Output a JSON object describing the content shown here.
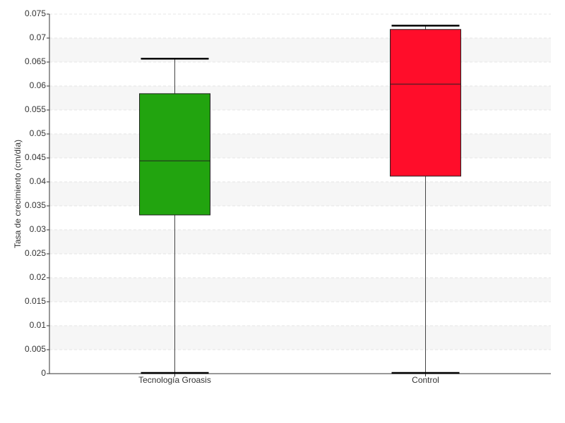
{
  "chart_data": {
    "type": "box",
    "ylabel": "Tasa de crecimiento (cm/día)",
    "categories": [
      "Tecnología Groasis",
      "Control"
    ],
    "boxes": [
      {
        "min": 0,
        "q1": 0.0331,
        "median": 0.0444,
        "q3": 0.0584,
        "max": 0.0657,
        "color": "#22a40f"
      },
      {
        "min": 0,
        "q1": 0.0412,
        "median": 0.0604,
        "q3": 0.0718,
        "max": 0.0726,
        "color": "#ff0d2a"
      }
    ],
    "ylim": [
      0,
      0.075
    ],
    "yticks": [
      0,
      0.005,
      0.01,
      0.015,
      0.02,
      0.025,
      0.03,
      0.035,
      0.04,
      0.045,
      0.05,
      0.055,
      0.06,
      0.065,
      0.07,
      0.075
    ],
    "grid": true
  }
}
